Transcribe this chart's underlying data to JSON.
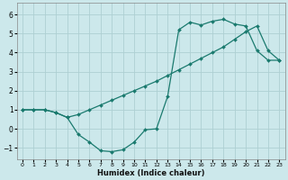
{
  "xlabel": "Humidex (Indice chaleur)",
  "xlim": [
    -0.5,
    23.5
  ],
  "ylim": [
    -1.6,
    6.6
  ],
  "xticks": [
    0,
    1,
    2,
    3,
    4,
    5,
    6,
    7,
    8,
    9,
    10,
    11,
    12,
    13,
    14,
    15,
    16,
    17,
    18,
    19,
    20,
    21,
    22,
    23
  ],
  "yticks": [
    -1,
    0,
    1,
    2,
    3,
    4,
    5,
    6
  ],
  "bg_color": "#cce8eb",
  "line_color": "#1a7a6e",
  "grid_color": "#aecfd2",
  "curve1_x": [
    0,
    1,
    2,
    3,
    4,
    5,
    6,
    7,
    8,
    9,
    10,
    11,
    12,
    13,
    14,
    15,
    16,
    17,
    18,
    19,
    20,
    21,
    22,
    23
  ],
  "curve1_y": [
    1.0,
    1.0,
    1.0,
    0.85,
    0.6,
    -0.3,
    -0.7,
    -1.15,
    -1.2,
    -1.1,
    -0.7,
    -0.05,
    0.0,
    1.7,
    5.2,
    5.6,
    5.45,
    5.65,
    5.75,
    5.5,
    5.4,
    4.1,
    3.6,
    3.6
  ],
  "curve2_x": [
    0,
    1,
    2,
    3,
    4,
    5,
    6,
    7,
    8,
    9,
    10,
    11,
    12,
    13,
    14,
    15,
    16,
    17,
    18,
    19,
    20,
    21,
    22,
    23
  ],
  "curve2_y": [
    1.0,
    1.0,
    1.0,
    0.85,
    0.6,
    0.75,
    1.0,
    1.25,
    1.5,
    1.75,
    2.0,
    2.25,
    2.5,
    2.8,
    3.1,
    3.4,
    3.7,
    4.0,
    4.3,
    4.7,
    5.1,
    5.4,
    4.1,
    3.6
  ]
}
